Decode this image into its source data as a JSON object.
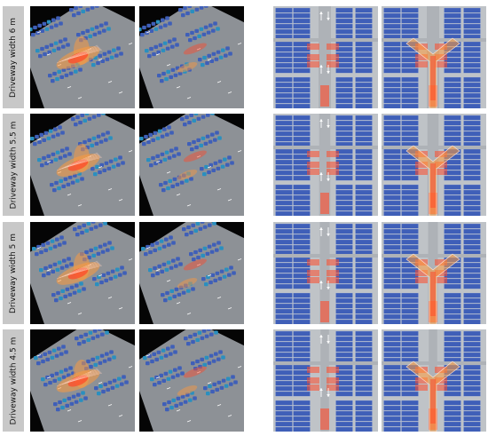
{
  "rows": [
    {
      "label": "Driveway width 6 m"
    },
    {
      "label": "Driveway width 5.5 m"
    },
    {
      "label": "Driveway width 5 m"
    },
    {
      "label": "Driveway width 4.5 m"
    }
  ],
  "colors": {
    "background": "#ffffff",
    "label_bg": "#c8c8c8",
    "perspective_bg": "#050505",
    "ground": "#bfc3c7",
    "parking_bay": "#3f5fb8",
    "bay_line": "#9fb0d8",
    "heat_hot": "#ff4a2a",
    "heat_warm": "#ff9a3c",
    "arrow": "#ffffff"
  },
  "icons": [
    "arrow-up-icon",
    "arrow-down-icon"
  ]
}
